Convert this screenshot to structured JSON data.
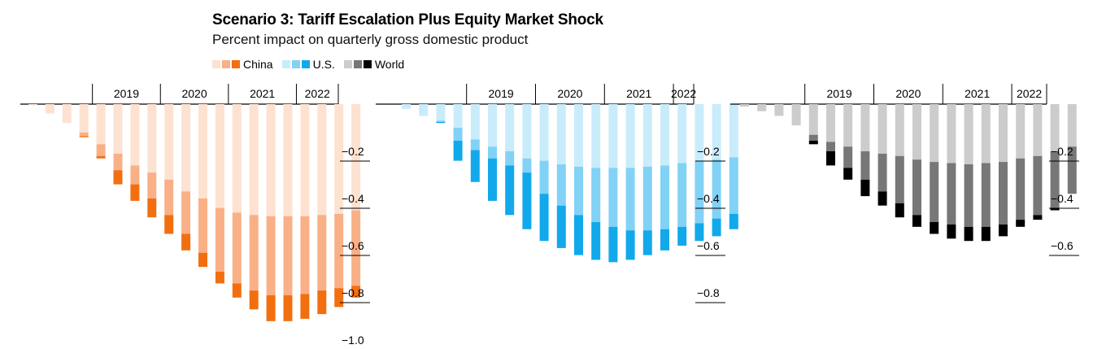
{
  "title": "Scenario 3: Tariff Escalation Plus Equity Market Shock",
  "subtitle": "Percent impact on quarterly gross domestic product",
  "legend": [
    {
      "label": "China",
      "colors": [
        "#fde2d1",
        "#f9b087",
        "#f26f10"
      ]
    },
    {
      "label": "U.S.",
      "colors": [
        "#c9ecfb",
        "#82d2f6",
        "#11a9ec"
      ]
    },
    {
      "label": "World",
      "colors": [
        "#cccccc",
        "#777777",
        "#000000"
      ]
    }
  ],
  "chart_data": [
    {
      "type": "bar",
      "series_name": "China",
      "years": [
        "2019",
        "2020",
        "2021",
        "2022"
      ],
      "y_ticks": [
        "−0.2",
        "−0.4",
        "−0.6",
        "−0.8",
        "−1.0"
      ],
      "ylim": [
        -1.0,
        0
      ],
      "colors": {
        "light": "#fde2d1",
        "mid": "#f9b087",
        "dark": "#f26f10"
      },
      "light": [
        -0.005,
        -0.04,
        -0.08,
        -0.12,
        -0.17,
        -0.21,
        -0.26,
        -0.29,
        -0.32,
        -0.37,
        -0.4,
        -0.44,
        -0.46,
        -0.47,
        -0.475,
        -0.475,
        -0.475,
        -0.47,
        -0.465,
        -0.45
      ],
      "mid": [
        -0.005,
        -0.04,
        -0.08,
        -0.135,
        -0.22,
        -0.28,
        -0.34,
        -0.4,
        -0.47,
        -0.55,
        -0.63,
        -0.71,
        -0.76,
        -0.79,
        -0.81,
        -0.81,
        -0.805,
        -0.79,
        -0.78,
        -0.77
      ],
      "total": [
        -0.005,
        -0.04,
        -0.08,
        -0.14,
        -0.23,
        -0.34,
        -0.41,
        -0.48,
        -0.55,
        -0.62,
        -0.69,
        -0.76,
        -0.82,
        -0.87,
        -0.92,
        -0.92,
        -0.91,
        -0.89,
        -0.86,
        -0.82
      ]
    },
    {
      "type": "bar",
      "series_name": "U.S.",
      "years": [
        "2019",
        "2020",
        "2021",
        "2022"
      ],
      "y_ticks": [
        "−0.2",
        "−0.4",
        "−0.6",
        "−0.8"
      ],
      "ylim": [
        -1.0,
        0
      ],
      "colors": {
        "light": "#c9ecfb",
        "mid": "#82d2f6",
        "dark": "#11a9ec"
      },
      "light": [
        -0.02,
        -0.05,
        -0.07,
        -0.1,
        -0.15,
        -0.18,
        -0.2,
        -0.23,
        -0.24,
        -0.255,
        -0.265,
        -0.27,
        -0.27,
        -0.27,
        -0.265,
        -0.26,
        -0.25,
        -0.24,
        -0.235,
        -0.225
      ],
      "mid": [
        -0.02,
        -0.05,
        -0.075,
        -0.155,
        -0.195,
        -0.23,
        -0.26,
        -0.29,
        -0.38,
        -0.43,
        -0.47,
        -0.5,
        -0.52,
        -0.535,
        -0.535,
        -0.53,
        -0.52,
        -0.505,
        -0.485,
        -0.465
      ],
      "total": [
        -0.02,
        -0.05,
        -0.08,
        -0.24,
        -0.33,
        -0.41,
        -0.47,
        -0.53,
        -0.58,
        -0.61,
        -0.64,
        -0.66,
        -0.67,
        -0.66,
        -0.64,
        -0.62,
        -0.6,
        -0.58,
        -0.56,
        -0.53
      ]
    },
    {
      "type": "bar",
      "series_name": "World",
      "years": [
        "2019",
        "2020",
        "2021",
        "2022"
      ],
      "y_ticks": [
        "−0.2",
        "−0.4",
        "−0.6"
      ],
      "ylim": [
        -1.0,
        0
      ],
      "colors": {
        "light": "#cccccc",
        "mid": "#777777",
        "dark": "#000000"
      },
      "light": [
        -0.01,
        -0.03,
        -0.05,
        -0.09,
        -0.13,
        -0.16,
        -0.18,
        -0.2,
        -0.21,
        -0.22,
        -0.235,
        -0.245,
        -0.25,
        -0.255,
        -0.25,
        -0.245,
        -0.23,
        -0.22,
        -0.2,
        -0.18
      ],
      "mid": [
        -0.01,
        -0.03,
        -0.05,
        -0.09,
        -0.155,
        -0.2,
        -0.27,
        -0.32,
        -0.37,
        -0.42,
        -0.47,
        -0.5,
        -0.51,
        -0.52,
        -0.52,
        -0.51,
        -0.49,
        -0.47,
        -0.44,
        -0.38
      ],
      "total": [
        -0.01,
        -0.03,
        -0.05,
        -0.09,
        -0.17,
        -0.26,
        -0.32,
        -0.39,
        -0.43,
        -0.48,
        -0.52,
        -0.55,
        -0.57,
        -0.58,
        -0.58,
        -0.56,
        -0.52,
        -0.49,
        -0.45,
        -0.38
      ]
    }
  ]
}
